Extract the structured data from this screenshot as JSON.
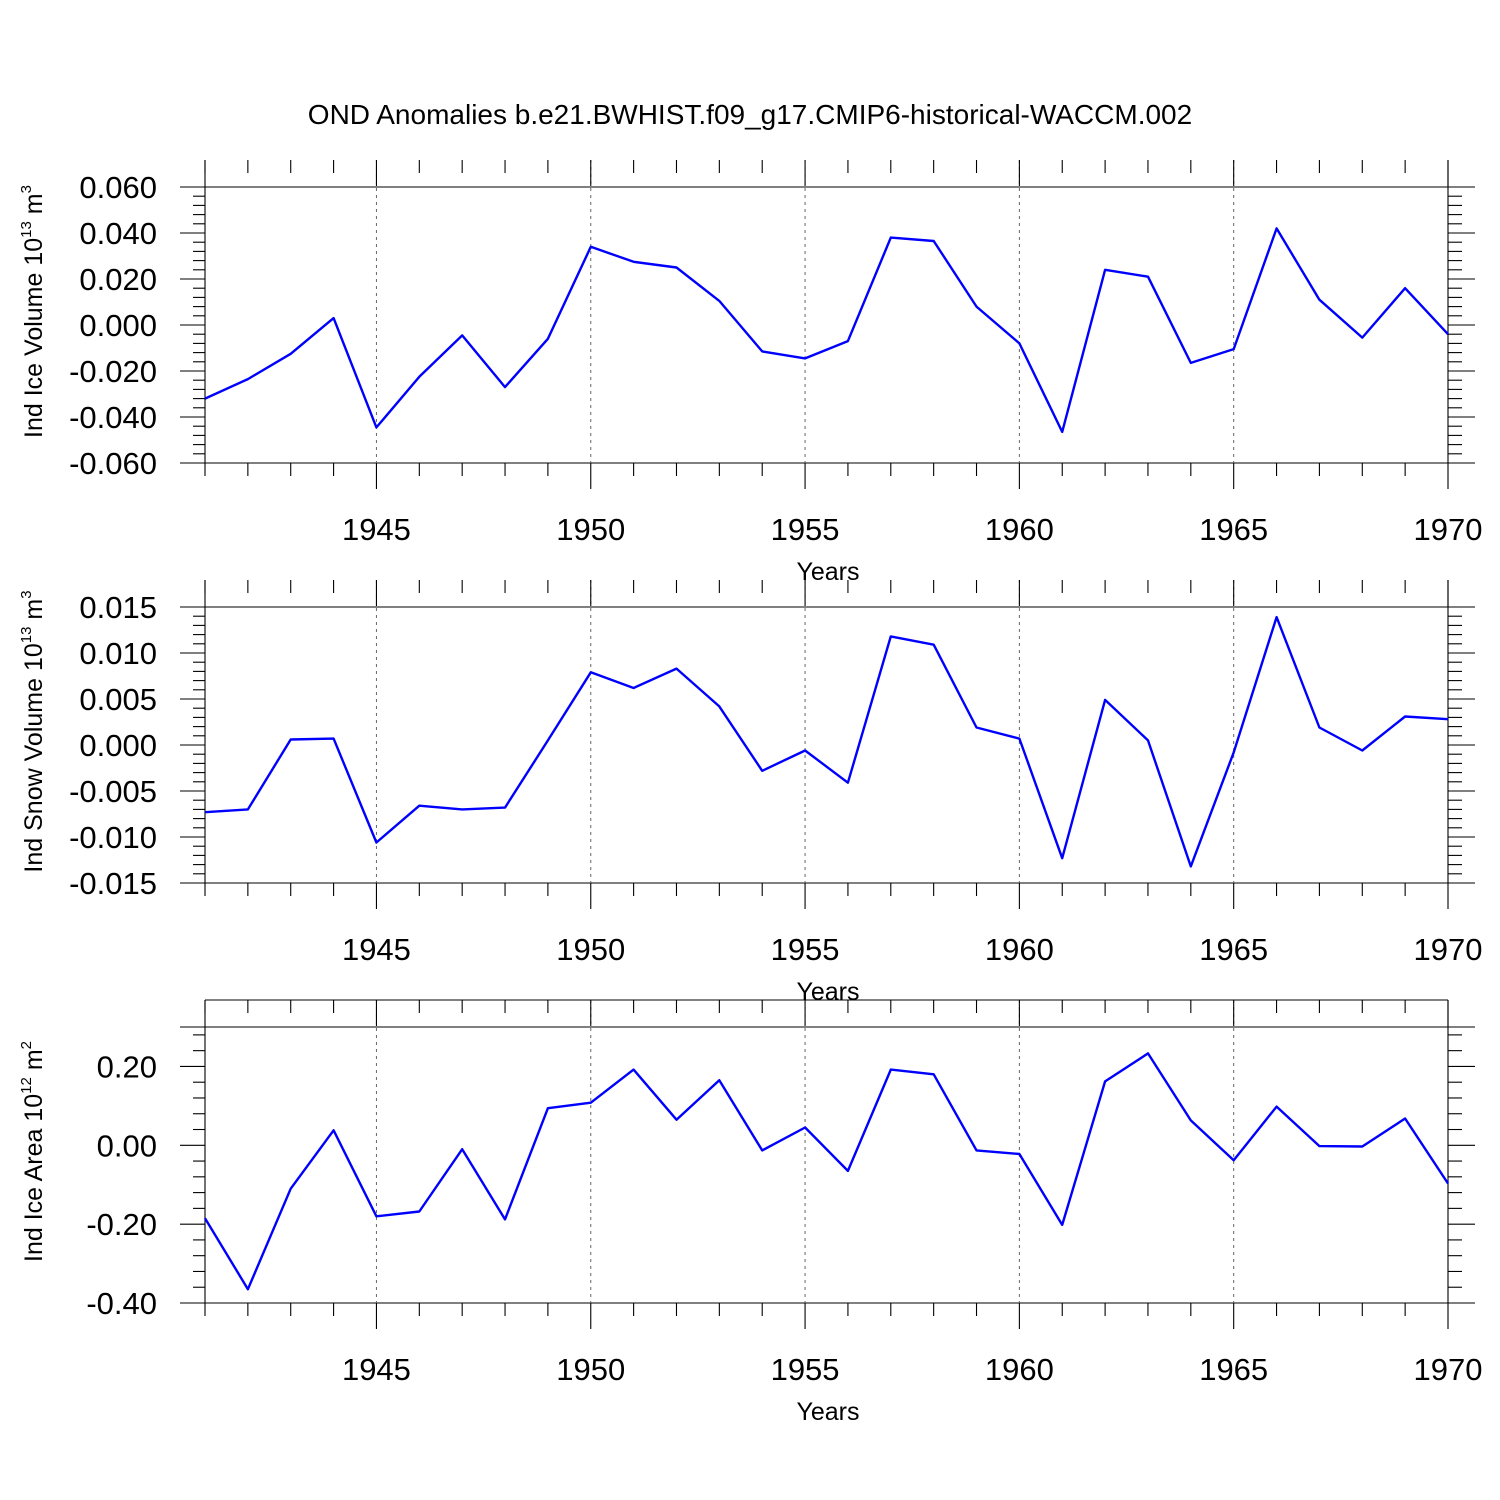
{
  "title": "OND Anomalies b.e21.BWHIST.f09_g17.CMIP6-historical-WACCM.002",
  "line_color": "#0000ff",
  "chart_data": [
    {
      "type": "line",
      "ylabel": {
        "prefix": "Ind Ice Volume 10",
        "exp": "13",
        "unit": " m",
        "unit_exp": "3"
      },
      "xlabel": "Years",
      "xlim": [
        1941,
        1970
      ],
      "ylim": [
        -0.06,
        0.06
      ],
      "yticks": [
        -0.06,
        -0.04,
        -0.02,
        0.0,
        0.02,
        0.04,
        0.06
      ],
      "ytick_labels": [
        "-0.060",
        "-0.040",
        "-0.020",
        "0.000",
        "0.020",
        "0.040",
        "0.060"
      ],
      "xticks": [
        1945,
        1950,
        1955,
        1960,
        1965,
        1970
      ],
      "xtick_labels": [
        "1945",
        "1950",
        "1955",
        "1960",
        "1965",
        "1970"
      ],
      "x": [
        1941,
        1942,
        1943,
        1944,
        1945,
        1946,
        1947,
        1948,
        1949,
        1950,
        1951,
        1952,
        1953,
        1954,
        1955,
        1956,
        1957,
        1958,
        1959,
        1960,
        1961,
        1962,
        1963,
        1964,
        1965,
        1966,
        1967,
        1968,
        1969,
        1970
      ],
      "values": [
        -0.032,
        -0.0235,
        -0.0125,
        0.003,
        -0.0445,
        -0.0225,
        -0.0045,
        -0.027,
        -0.006,
        0.034,
        0.0275,
        0.025,
        0.0105,
        -0.0115,
        -0.0145,
        -0.007,
        0.038,
        0.0365,
        0.008,
        -0.008,
        -0.0465,
        0.024,
        0.021,
        -0.0165,
        -0.0105,
        0.042,
        0.011,
        -0.0055,
        0.016,
        -0.004
      ]
    },
    {
      "type": "line",
      "ylabel": {
        "prefix": "Ind Snow Volume 10",
        "exp": "13",
        "unit": " m",
        "unit_exp": "3"
      },
      "xlabel": "Years",
      "xlim": [
        1941,
        1970
      ],
      "ylim": [
        -0.015,
        0.015
      ],
      "yticks": [
        -0.015,
        -0.01,
        -0.005,
        0.0,
        0.005,
        0.01,
        0.015
      ],
      "ytick_labels": [
        "-0.015",
        "-0.010",
        "-0.005",
        "0.000",
        "0.005",
        "0.010",
        "0.015"
      ],
      "xticks": [
        1945,
        1950,
        1955,
        1960,
        1965,
        1970
      ],
      "xtick_labels": [
        "1945",
        "1950",
        "1955",
        "1960",
        "1965",
        "1970"
      ],
      "x": [
        1941,
        1942,
        1943,
        1944,
        1945,
        1946,
        1947,
        1948,
        1949,
        1950,
        1951,
        1952,
        1953,
        1954,
        1955,
        1956,
        1957,
        1958,
        1959,
        1960,
        1961,
        1962,
        1963,
        1964,
        1965,
        1966,
        1967,
        1968,
        1969,
        1970
      ],
      "values": [
        -0.0073,
        -0.007,
        0.0006,
        0.0007,
        -0.0106,
        -0.0066,
        -0.007,
        -0.0068,
        0.0005,
        0.0079,
        0.0062,
        0.0083,
        0.0042,
        -0.0028,
        -0.0006,
        -0.0041,
        0.0118,
        0.0109,
        0.0019,
        0.0007,
        -0.0123,
        0.0049,
        0.0005,
        -0.0132,
        -0.0008,
        0.0139,
        0.0019,
        -0.0006,
        0.0031,
        0.0028
      ]
    },
    {
      "type": "line",
      "ylabel": {
        "prefix": "Ind Ice Area 10",
        "exp": "12",
        "unit": " m",
        "unit_exp": "2"
      },
      "xlabel": "Years",
      "xlim": [
        1941,
        1970
      ],
      "ylim": [
        -0.4,
        0.3
      ],
      "yticks": [
        -0.4,
        -0.2,
        0.0,
        0.2
      ],
      "ytick_labels": [
        "-0.40",
        "-0.20",
        "0.00",
        "0.20"
      ],
      "xticks": [
        1945,
        1950,
        1955,
        1960,
        1965,
        1970
      ],
      "xtick_labels": [
        "1945",
        "1950",
        "1955",
        "1960",
        "1965",
        "1970"
      ],
      "x": [
        1941,
        1942,
        1943,
        1944,
        1945,
        1946,
        1947,
        1948,
        1949,
        1950,
        1951,
        1952,
        1953,
        1954,
        1955,
        1956,
        1957,
        1958,
        1959,
        1960,
        1961,
        1962,
        1963,
        1964,
        1965,
        1966,
        1967,
        1968,
        1969,
        1970
      ],
      "values": [
        -0.185,
        -0.365,
        -0.11,
        0.038,
        -0.18,
        -0.168,
        -0.01,
        -0.188,
        0.094,
        0.108,
        0.192,
        0.065,
        0.165,
        -0.013,
        0.045,
        -0.065,
        0.192,
        0.18,
        -0.013,
        -0.022,
        -0.202,
        0.162,
        0.233,
        0.063,
        -0.038,
        0.098,
        -0.002,
        -0.003,
        0.068,
        -0.097
      ]
    }
  ]
}
